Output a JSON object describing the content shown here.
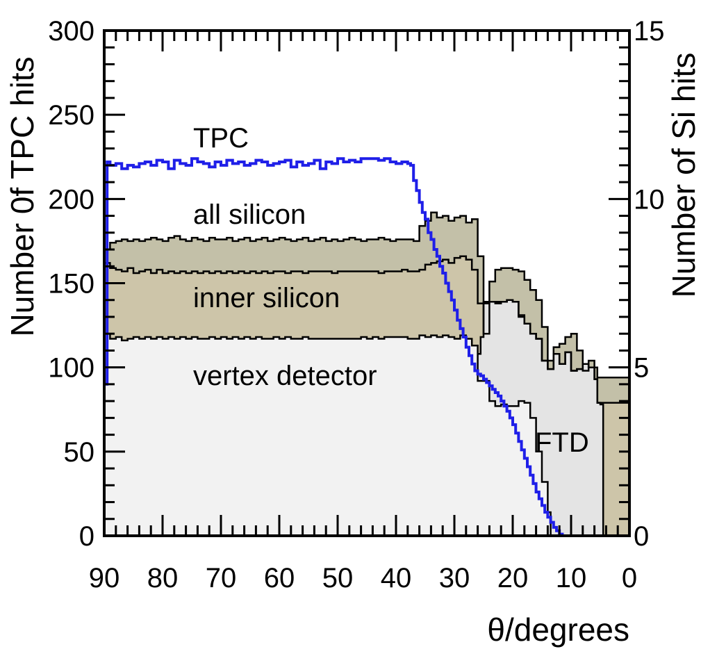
{
  "chart_data": {
    "type": "area",
    "title": "",
    "xlabel": "θ/degrees",
    "ylabel": "Number 0f TPC hits",
    "y2label": "Number of Si hits",
    "xlim": [
      90,
      0
    ],
    "ylim": [
      0,
      300
    ],
    "y2lim": [
      0,
      15
    ],
    "xticks": [
      "90",
      "80",
      "70",
      "60",
      "50",
      "40",
      "30",
      "20",
      "10",
      "0"
    ],
    "yticks": [
      "0",
      "50",
      "100",
      "150",
      "200",
      "250",
      "300"
    ],
    "y2ticks": [
      "0",
      "5",
      "10",
      "15"
    ],
    "colors": {
      "tpc": "#1f1fe8",
      "vertex_fill": "#f2f2f2",
      "inner_fill": "#cdc5a9",
      "all_fill": "#c3c0a8",
      "ftd_fill": "#e4e4e4",
      "outline": "#000000"
    },
    "series": [
      {
        "name": "TPC",
        "axis": "left",
        "x": [
          90,
          89.5,
          89,
          88,
          87,
          86,
          85,
          84,
          83,
          82,
          81,
          80,
          79,
          78,
          77,
          76,
          75,
          74,
          73,
          72,
          71,
          70,
          69,
          68,
          67,
          66,
          65,
          64,
          63,
          62,
          61,
          60,
          59,
          58,
          57,
          56,
          55,
          54,
          53,
          52,
          51,
          50,
          49,
          48,
          47,
          46,
          45,
          44,
          43,
          42,
          41,
          40,
          39,
          38,
          37.5,
          37,
          36.5,
          36,
          35.5,
          35,
          34.5,
          34,
          33.5,
          33,
          32.5,
          32,
          31.5,
          31,
          30.5,
          30,
          29.5,
          29,
          28.5,
          28,
          27.5,
          27,
          26.5,
          26,
          25.5,
          25,
          24.5,
          24,
          23.5,
          23,
          22.5,
          22,
          21.5,
          21,
          20.5,
          20,
          19.5,
          19,
          18.5,
          18,
          17.5,
          17,
          16.5,
          16,
          15.5,
          15,
          14.5,
          14,
          13.5,
          13,
          12.5,
          12,
          11.5,
          11,
          10.5,
          10,
          0
        ],
        "values": [
          90,
          222,
          220,
          221,
          218,
          220,
          219,
          221,
          222,
          220,
          223,
          222,
          218,
          223,
          221,
          220,
          224,
          222,
          221,
          219,
          222,
          220,
          223,
          221,
          222,
          220,
          221,
          223,
          222,
          220,
          221,
          222,
          223,
          219,
          222,
          220,
          221,
          223,
          218,
          222,
          221,
          224,
          222,
          223,
          222,
          224,
          224,
          224,
          223,
          224,
          222,
          221,
          222,
          221,
          220,
          211,
          205,
          198,
          192,
          188,
          180,
          176,
          170,
          166,
          160,
          156,
          150,
          145,
          140,
          134,
          128,
          123,
          118,
          112,
          107,
          102,
          98,
          96,
          95,
          93,
          91,
          89,
          87,
          85,
          83,
          80,
          77,
          74,
          70,
          66,
          61,
          56,
          51,
          46,
          41,
          36,
          31,
          26,
          22,
          18,
          14,
          11,
          8,
          5,
          3,
          1,
          0,
          0,
          0,
          0,
          0
        ]
      },
      {
        "name": "vertex detector",
        "axis": "right",
        "x": [
          90,
          89,
          88,
          87,
          86,
          85,
          84,
          83,
          82,
          81,
          80,
          79,
          78,
          77,
          76,
          75,
          74,
          73,
          72,
          71,
          70,
          69,
          68,
          67,
          66,
          65,
          64,
          63,
          62,
          61,
          60,
          59,
          58,
          57,
          56,
          55,
          54,
          53,
          52,
          51,
          50,
          49,
          48,
          47,
          46,
          45,
          44,
          43,
          42,
          41,
          40,
          39,
          38,
          37,
          36,
          35,
          34,
          33,
          32,
          31,
          30,
          29,
          28,
          27,
          26,
          25,
          24,
          23,
          22,
          21,
          20,
          19,
          18,
          17,
          16,
          15,
          14,
          13.5,
          0
        ],
        "values": [
          6.0,
          5.85,
          5.9,
          5.8,
          5.85,
          5.9,
          5.85,
          5.9,
          5.85,
          5.9,
          5.85,
          5.9,
          5.85,
          5.9,
          5.85,
          5.9,
          5.85,
          5.85,
          5.9,
          5.85,
          5.9,
          5.85,
          5.9,
          5.85,
          5.9,
          5.85,
          5.9,
          5.85,
          5.85,
          5.9,
          5.85,
          5.9,
          5.85,
          5.85,
          5.9,
          5.85,
          5.85,
          5.85,
          5.85,
          5.85,
          5.85,
          5.85,
          5.85,
          5.85,
          5.9,
          5.85,
          5.9,
          5.85,
          5.9,
          5.9,
          5.9,
          5.9,
          5.85,
          5.85,
          5.95,
          5.9,
          5.95,
          5.9,
          5.95,
          5.9,
          5.85,
          5.95,
          5.85,
          5.65,
          4.6,
          4.6,
          4.0,
          3.85,
          3.9,
          3.85,
          3.85,
          4.0,
          3.95,
          3.5,
          2.5,
          1.6,
          0.7,
          0,
          0
        ]
      },
      {
        "name": "inner silicon",
        "axis": "right",
        "x": [
          90,
          89,
          88,
          87,
          86,
          85,
          84,
          83,
          82,
          81,
          80,
          79,
          78,
          77,
          76,
          75,
          74,
          73,
          72,
          71,
          70,
          69,
          68,
          67,
          66,
          65,
          64,
          63,
          62,
          61,
          60,
          59,
          58,
          57,
          56,
          55,
          54,
          53,
          52,
          51,
          50,
          49,
          48,
          47,
          46,
          45,
          44,
          43,
          42,
          41,
          40,
          39,
          38,
          37,
          36,
          35,
          34,
          33,
          32,
          31,
          30,
          29,
          28,
          27,
          26,
          25,
          24,
          23,
          22,
          21,
          20,
          19,
          18,
          17,
          16,
          15,
          14,
          13,
          12,
          11,
          10,
          9,
          8,
          7,
          6,
          5.5,
          0
        ],
        "values": [
          8.1,
          7.95,
          7.9,
          7.85,
          7.95,
          7.8,
          7.85,
          7.9,
          7.8,
          7.9,
          7.8,
          7.85,
          7.8,
          7.85,
          7.8,
          7.85,
          7.8,
          7.85,
          7.8,
          7.85,
          7.8,
          7.85,
          7.8,
          7.85,
          7.8,
          7.85,
          7.8,
          7.85,
          7.8,
          7.85,
          7.85,
          7.8,
          7.85,
          7.85,
          7.8,
          7.85,
          7.85,
          7.85,
          7.85,
          7.8,
          7.85,
          7.85,
          7.85,
          7.85,
          7.85,
          7.85,
          7.85,
          7.8,
          7.85,
          7.85,
          7.85,
          7.9,
          7.85,
          7.85,
          7.9,
          8.05,
          8.1,
          8.15,
          8.2,
          8.1,
          8.25,
          8.3,
          8.2,
          7.9,
          6.9,
          6.0,
          6.95,
          6.95,
          6.95,
          7.0,
          6.95,
          6.55,
          6.3,
          6.0,
          5.85,
          5.2,
          4.95,
          5.4,
          5.1,
          5.45,
          4.9,
          4.95,
          5.1,
          5.0,
          4.65,
          3.95,
          0
        ]
      },
      {
        "name": "all silicon",
        "axis": "right",
        "x": [
          90,
          89,
          88,
          87,
          86,
          85,
          84,
          83,
          82,
          81,
          80,
          79,
          78,
          77,
          76,
          75,
          74,
          73,
          72,
          71,
          70,
          69,
          68,
          67,
          66,
          65,
          64,
          63,
          62,
          61,
          60,
          59,
          58,
          57,
          56,
          55,
          54,
          53,
          52,
          51,
          50,
          49,
          48,
          47,
          46,
          45,
          44,
          43,
          42,
          41,
          40,
          39,
          38,
          37,
          36,
          35,
          34,
          33,
          32,
          31,
          30,
          29,
          28,
          27,
          26,
          25,
          24,
          23,
          22,
          21,
          20,
          19,
          18,
          17,
          16,
          15,
          14,
          13,
          12,
          11,
          10,
          9,
          8,
          7,
          6,
          5.5,
          0
        ],
        "values": [
          8.5,
          8.7,
          8.75,
          8.8,
          8.75,
          8.8,
          8.75,
          8.8,
          8.85,
          8.8,
          8.75,
          8.85,
          8.9,
          8.8,
          8.75,
          8.85,
          8.8,
          8.75,
          8.85,
          8.8,
          8.8,
          8.85,
          8.75,
          8.8,
          8.85,
          8.75,
          8.8,
          8.85,
          8.75,
          8.8,
          8.85,
          8.8,
          8.75,
          8.8,
          8.85,
          8.75,
          8.8,
          8.85,
          8.75,
          8.8,
          8.75,
          8.8,
          8.85,
          8.8,
          8.75,
          8.8,
          8.8,
          8.85,
          8.8,
          8.75,
          8.8,
          8.8,
          8.8,
          8.75,
          9.2,
          9.35,
          9.6,
          9.45,
          9.5,
          9.35,
          9.45,
          9.5,
          9.3,
          9.4,
          8.3,
          6.9,
          7.55,
          7.9,
          7.95,
          7.95,
          7.9,
          7.85,
          7.6,
          7.3,
          7.0,
          6.2,
          5.2,
          5.6,
          5.7,
          5.9,
          6.0,
          5.5,
          4.9,
          5.2,
          5.0,
          4.7,
          0
        ]
      },
      {
        "name": "FTD",
        "axis": "right",
        "x": [
          26,
          25.5,
          25,
          24,
          23,
          22,
          21,
          20,
          19,
          18,
          17,
          16,
          15,
          14,
          13,
          12,
          11,
          10,
          9,
          8,
          7,
          6,
          5.5,
          5,
          4.5
        ],
        "values": [
          5.4,
          5.9,
          6.95,
          6.95,
          6.9,
          6.95,
          7.0,
          6.95,
          6.5,
          6.3,
          6.0,
          5.85,
          5.2,
          4.95,
          5.4,
          5.1,
          5.45,
          4.9,
          4.95,
          5.1,
          5.0,
          4.65,
          3.95,
          3.9,
          0
        ]
      }
    ],
    "annotations": [
      "TPC",
      "all silicon",
      "inner silicon",
      "vertex detector",
      "FTD"
    ]
  }
}
